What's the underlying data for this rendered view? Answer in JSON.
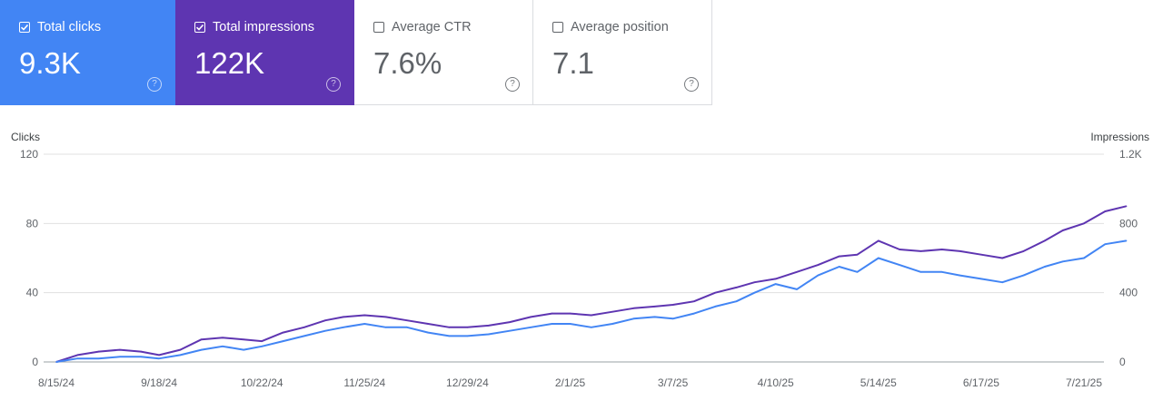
{
  "cards": [
    {
      "label": "Total clicks",
      "value": "9.3K",
      "checked": true,
      "color": "#4285f4"
    },
    {
      "label": "Total impressions",
      "value": "122K",
      "checked": true,
      "color": "#5e35b1"
    },
    {
      "label": "Average CTR",
      "value": "7.6%",
      "checked": false
    },
    {
      "label": "Average position",
      "value": "7.1",
      "checked": false
    }
  ],
  "chart_data": {
    "type": "line",
    "left_axis": {
      "label": "Clicks",
      "ticks": [
        "0",
        "40",
        "80",
        "120"
      ],
      "range": [
        0,
        120
      ]
    },
    "right_axis": {
      "label": "Impressions",
      "ticks": [
        "0",
        "400",
        "800",
        "1.2K"
      ],
      "range": [
        0,
        1200
      ]
    },
    "x_ticks": [
      "8/15/24",
      "9/18/24",
      "10/22/24",
      "11/25/24",
      "12/29/24",
      "2/1/25",
      "3/7/25",
      "4/10/25",
      "5/14/25",
      "6/17/25",
      "7/21/25"
    ],
    "grid": true,
    "series": [
      {
        "name": "Clicks",
        "axis": "left",
        "color": "#4285f4",
        "points": [
          [
            "8/15/24",
            0
          ],
          [
            "8/22/24",
            2
          ],
          [
            "8/29/24",
            2
          ],
          [
            "9/5/24",
            3
          ],
          [
            "9/12/24",
            3
          ],
          [
            "9/18/24",
            2
          ],
          [
            "9/25/24",
            4
          ],
          [
            "10/2/24",
            7
          ],
          [
            "10/9/24",
            9
          ],
          [
            "10/16/24",
            7
          ],
          [
            "10/22/24",
            9
          ],
          [
            "10/29/24",
            12
          ],
          [
            "11/5/24",
            15
          ],
          [
            "11/12/24",
            18
          ],
          [
            "11/18/24",
            20
          ],
          [
            "11/25/24",
            22
          ],
          [
            "12/2/24",
            20
          ],
          [
            "12/9/24",
            20
          ],
          [
            "12/16/24",
            17
          ],
          [
            "12/23/24",
            15
          ],
          [
            "12/29/24",
            15
          ],
          [
            "1/5/25",
            16
          ],
          [
            "1/12/25",
            18
          ],
          [
            "1/19/25",
            20
          ],
          [
            "1/26/25",
            22
          ],
          [
            "2/1/25",
            22
          ],
          [
            "2/8/25",
            20
          ],
          [
            "2/15/25",
            22
          ],
          [
            "2/22/25",
            25
          ],
          [
            "3/1/25",
            26
          ],
          [
            "3/7/25",
            25
          ],
          [
            "3/14/25",
            28
          ],
          [
            "3/21/25",
            32
          ],
          [
            "3/28/25",
            35
          ],
          [
            "4/3/25",
            40
          ],
          [
            "4/10/25",
            45
          ],
          [
            "4/17/25",
            42
          ],
          [
            "4/24/25",
            50
          ],
          [
            "5/1/25",
            55
          ],
          [
            "5/7/25",
            52
          ],
          [
            "5/14/25",
            60
          ],
          [
            "5/21/25",
            56
          ],
          [
            "5/28/25",
            52
          ],
          [
            "6/4/25",
            52
          ],
          [
            "6/10/25",
            50
          ],
          [
            "6/17/25",
            48
          ],
          [
            "6/24/25",
            46
          ],
          [
            "7/1/25",
            50
          ],
          [
            "7/8/25",
            55
          ],
          [
            "7/14/25",
            58
          ],
          [
            "7/21/25",
            60
          ],
          [
            "7/28/25",
            68
          ],
          [
            "8/4/25",
            70
          ]
        ]
      },
      {
        "name": "Impressions",
        "axis": "right",
        "color": "#5e35b1",
        "points": [
          [
            "8/15/24",
            0
          ],
          [
            "8/22/24",
            40
          ],
          [
            "8/29/24",
            60
          ],
          [
            "9/5/24",
            70
          ],
          [
            "9/12/24",
            60
          ],
          [
            "9/18/24",
            40
          ],
          [
            "9/25/24",
            70
          ],
          [
            "10/2/24",
            130
          ],
          [
            "10/9/24",
            140
          ],
          [
            "10/16/24",
            130
          ],
          [
            "10/22/24",
            120
          ],
          [
            "10/29/24",
            170
          ],
          [
            "11/5/24",
            200
          ],
          [
            "11/12/24",
            240
          ],
          [
            "11/18/24",
            260
          ],
          [
            "11/25/24",
            270
          ],
          [
            "12/2/24",
            260
          ],
          [
            "12/9/24",
            240
          ],
          [
            "12/16/24",
            220
          ],
          [
            "12/23/24",
            200
          ],
          [
            "12/29/24",
            200
          ],
          [
            "1/5/25",
            210
          ],
          [
            "1/12/25",
            230
          ],
          [
            "1/19/25",
            260
          ],
          [
            "1/26/25",
            280
          ],
          [
            "2/1/25",
            280
          ],
          [
            "2/8/25",
            270
          ],
          [
            "2/15/25",
            290
          ],
          [
            "2/22/25",
            310
          ],
          [
            "3/1/25",
            320
          ],
          [
            "3/7/25",
            330
          ],
          [
            "3/14/25",
            350
          ],
          [
            "3/21/25",
            400
          ],
          [
            "3/28/25",
            430
          ],
          [
            "4/3/25",
            460
          ],
          [
            "4/10/25",
            480
          ],
          [
            "4/17/25",
            520
          ],
          [
            "4/24/25",
            560
          ],
          [
            "5/1/25",
            610
          ],
          [
            "5/7/25",
            620
          ],
          [
            "5/14/25",
            700
          ],
          [
            "5/21/25",
            650
          ],
          [
            "5/28/25",
            640
          ],
          [
            "6/4/25",
            650
          ],
          [
            "6/10/25",
            640
          ],
          [
            "6/17/25",
            620
          ],
          [
            "6/24/25",
            600
          ],
          [
            "7/1/25",
            640
          ],
          [
            "7/8/25",
            700
          ],
          [
            "7/14/25",
            760
          ],
          [
            "7/21/25",
            800
          ],
          [
            "7/28/25",
            870
          ],
          [
            "8/4/25",
            900
          ]
        ]
      }
    ]
  }
}
